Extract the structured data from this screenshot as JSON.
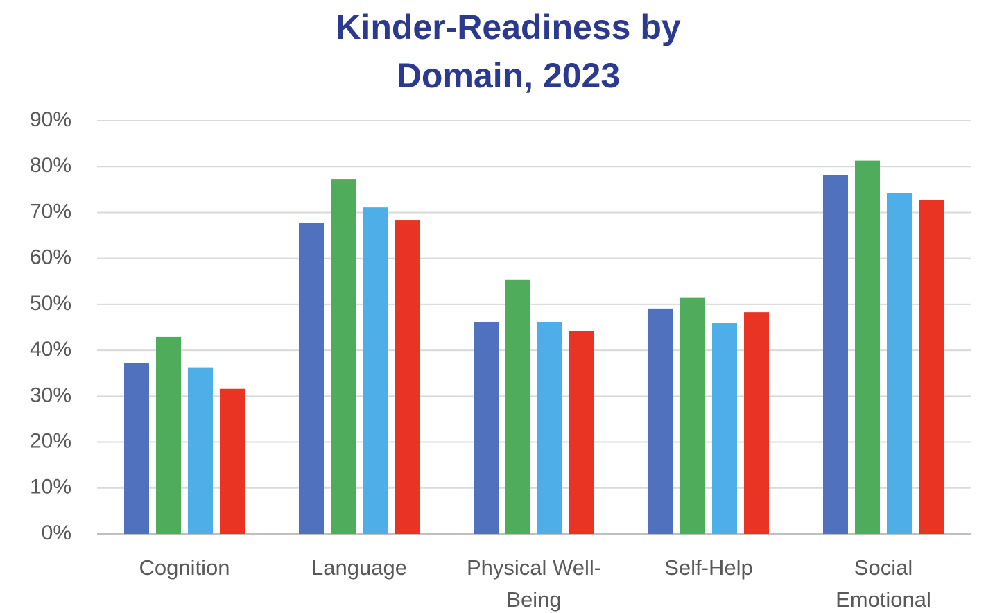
{
  "chart_data": {
    "type": "bar",
    "title": "Kinder-Readiness by Domain, 2023",
    "categories": [
      "Cognition",
      "Language",
      "Physical Well-Being",
      "Self-Help",
      "Social Emotional"
    ],
    "series": [
      {
        "color": "#4f71be",
        "values": [
          37.2,
          67.8,
          46.1,
          49.1,
          78.2
        ]
      },
      {
        "color": "#4eac5b",
        "values": [
          42.9,
          77.3,
          55.3,
          51.4,
          81.3
        ]
      },
      {
        "color": "#4eaee8",
        "values": [
          36.3,
          71.1,
          46.1,
          45.9,
          74.3
        ]
      },
      {
        "color": "#e93323",
        "values": [
          31.6,
          68.4,
          44.1,
          48.3,
          72.7
        ]
      }
    ],
    "ylim": [
      0,
      90
    ],
    "yticks": [
      {
        "value": 0,
        "label": "0%"
      },
      {
        "value": 10,
        "label": "10%"
      },
      {
        "value": 20,
        "label": "20%"
      },
      {
        "value": 30,
        "label": "30%"
      },
      {
        "value": 40,
        "label": "40%"
      },
      {
        "value": 50,
        "label": "50%"
      },
      {
        "value": 60,
        "label": "60%"
      },
      {
        "value": 70,
        "label": "70%"
      },
      {
        "value": 80,
        "label": "80%"
      },
      {
        "value": 90,
        "label": "90%"
      }
    ],
    "grid": true
  }
}
